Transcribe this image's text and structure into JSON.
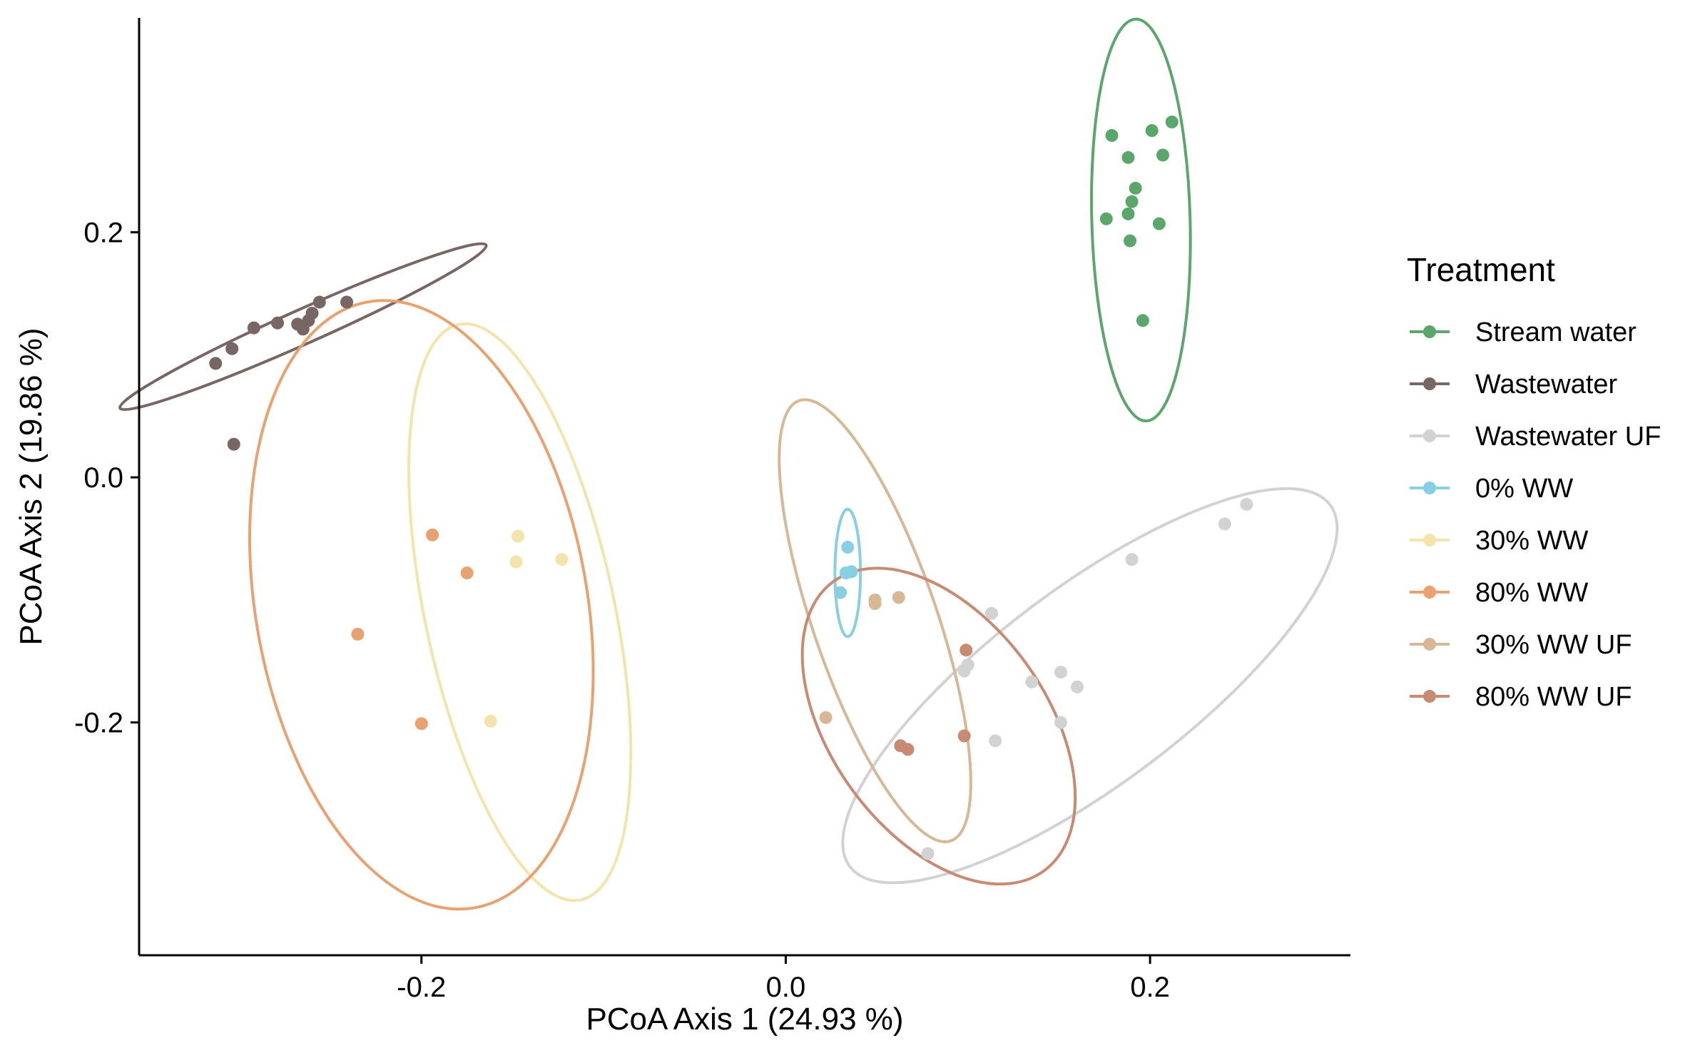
{
  "chart_data": {
    "type": "scatter",
    "title": "",
    "xlabel": "PCoA Axis 1 (24.93 %)",
    "ylabel": "PCoA Axis 2 (19.86 %)",
    "xlim": [
      -0.355,
      0.31
    ],
    "ylim": [
      -0.39,
      0.375
    ],
    "x_ticks": [
      -0.2,
      0.0,
      0.2
    ],
    "x_tick_labels": [
      "-0.2",
      "0.0",
      "0.2"
    ],
    "y_ticks": [
      -0.2,
      0.0,
      0.2
    ],
    "y_tick_labels": [
      "-0.2",
      "0.0",
      "0.2"
    ],
    "grid": false,
    "legend": {
      "title": "Treatment",
      "position": "right"
    },
    "series": [
      {
        "name": "Stream water",
        "color": "#5ba66b",
        "points": [
          [
            0.179,
            0.279
          ],
          [
            0.201,
            0.283
          ],
          [
            0.212,
            0.29
          ],
          [
            0.207,
            0.263
          ],
          [
            0.188,
            0.261
          ],
          [
            0.192,
            0.236
          ],
          [
            0.19,
            0.225
          ],
          [
            0.188,
            0.215
          ],
          [
            0.176,
            0.211
          ],
          [
            0.205,
            0.207
          ],
          [
            0.189,
            0.193
          ],
          [
            0.196,
            0.128
          ]
        ],
        "ellipse": {
          "center": [
            0.195,
            0.21
          ],
          "rx": 0.027,
          "ry": 0.164,
          "angle_deg": -1.5
        }
      },
      {
        "name": "Wastewater",
        "color": "#776664",
        "points": [
          [
            -0.313,
            0.093
          ],
          [
            -0.304,
            0.105
          ],
          [
            -0.292,
            0.122
          ],
          [
            -0.279,
            0.126
          ],
          [
            -0.268,
            0.125
          ],
          [
            -0.265,
            0.121
          ],
          [
            -0.262,
            0.128
          ],
          [
            -0.26,
            0.134
          ],
          [
            -0.256,
            0.143
          ],
          [
            -0.241,
            0.143
          ],
          [
            -0.303,
            0.027
          ]
        ],
        "ellipse": {
          "center": [
            -0.265,
            0.123
          ],
          "rx": 0.11,
          "ry": 0.014,
          "angle_deg": -24
        }
      },
      {
        "name": "Wastewater UF",
        "color": "#d3d2d2",
        "points": [
          [
            0.253,
            -0.022
          ],
          [
            0.241,
            -0.038
          ],
          [
            0.19,
            -0.067
          ],
          [
            0.113,
            -0.111
          ],
          [
            0.1,
            -0.153
          ],
          [
            0.098,
            -0.158
          ],
          [
            0.135,
            -0.167
          ],
          [
            0.151,
            -0.159
          ],
          [
            0.16,
            -0.171
          ],
          [
            0.151,
            -0.2
          ],
          [
            0.115,
            -0.215
          ],
          [
            0.078,
            -0.307
          ]
        ],
        "ellipse": {
          "center": [
            0.167,
            -0.17
          ],
          "rx": 0.165,
          "ry": 0.08,
          "angle_deg": -37
        }
      },
      {
        "name": "0% WW",
        "color": "#89cfe3",
        "points": [
          [
            0.034,
            -0.057
          ],
          [
            0.033,
            -0.078
          ],
          [
            0.036,
            -0.077
          ],
          [
            0.03,
            -0.094
          ]
        ],
        "ellipse": {
          "center": [
            0.034,
            -0.078
          ],
          "rx": 0.007,
          "ry": 0.052,
          "angle_deg": 0
        }
      },
      {
        "name": "30% WW",
        "color": "#f2e4aa",
        "points": [
          [
            -0.147,
            -0.048
          ],
          [
            -0.123,
            -0.067
          ],
          [
            -0.148,
            -0.069
          ],
          [
            -0.162,
            -0.199
          ]
        ],
        "ellipse": {
          "center": [
            -0.146,
            -0.11
          ],
          "rx": 0.052,
          "ry": 0.24,
          "angle_deg": -12
        }
      },
      {
        "name": "80% WW",
        "color": "#e9a16f",
        "points": [
          [
            -0.194,
            -0.047
          ],
          [
            -0.175,
            -0.078
          ],
          [
            -0.235,
            -0.128
          ],
          [
            -0.2,
            -0.201
          ]
        ],
        "ellipse": {
          "center": [
            -0.2,
            -0.104
          ],
          "rx": 0.091,
          "ry": 0.251,
          "angle_deg": -10
        }
      },
      {
        "name": "30% WW UF",
        "color": "#d7b896",
        "points": [
          [
            0.049,
            -0.1
          ],
          [
            0.049,
            -0.103
          ],
          [
            0.062,
            -0.098
          ],
          [
            0.022,
            -0.196
          ]
        ],
        "ellipse": {
          "center": [
            0.049,
            -0.117
          ],
          "rx": 0.034,
          "ry": 0.19,
          "angle_deg": -19
        }
      },
      {
        "name": "80% WW UF",
        "color": "#c98a72",
        "points": [
          [
            0.099,
            -0.141
          ],
          [
            0.063,
            -0.219
          ],
          [
            0.067,
            -0.222
          ],
          [
            0.098,
            -0.211
          ]
        ],
        "ellipse": {
          "center": [
            0.084,
            -0.203
          ],
          "rx": 0.059,
          "ry": 0.146,
          "angle_deg": -36
        }
      }
    ]
  }
}
